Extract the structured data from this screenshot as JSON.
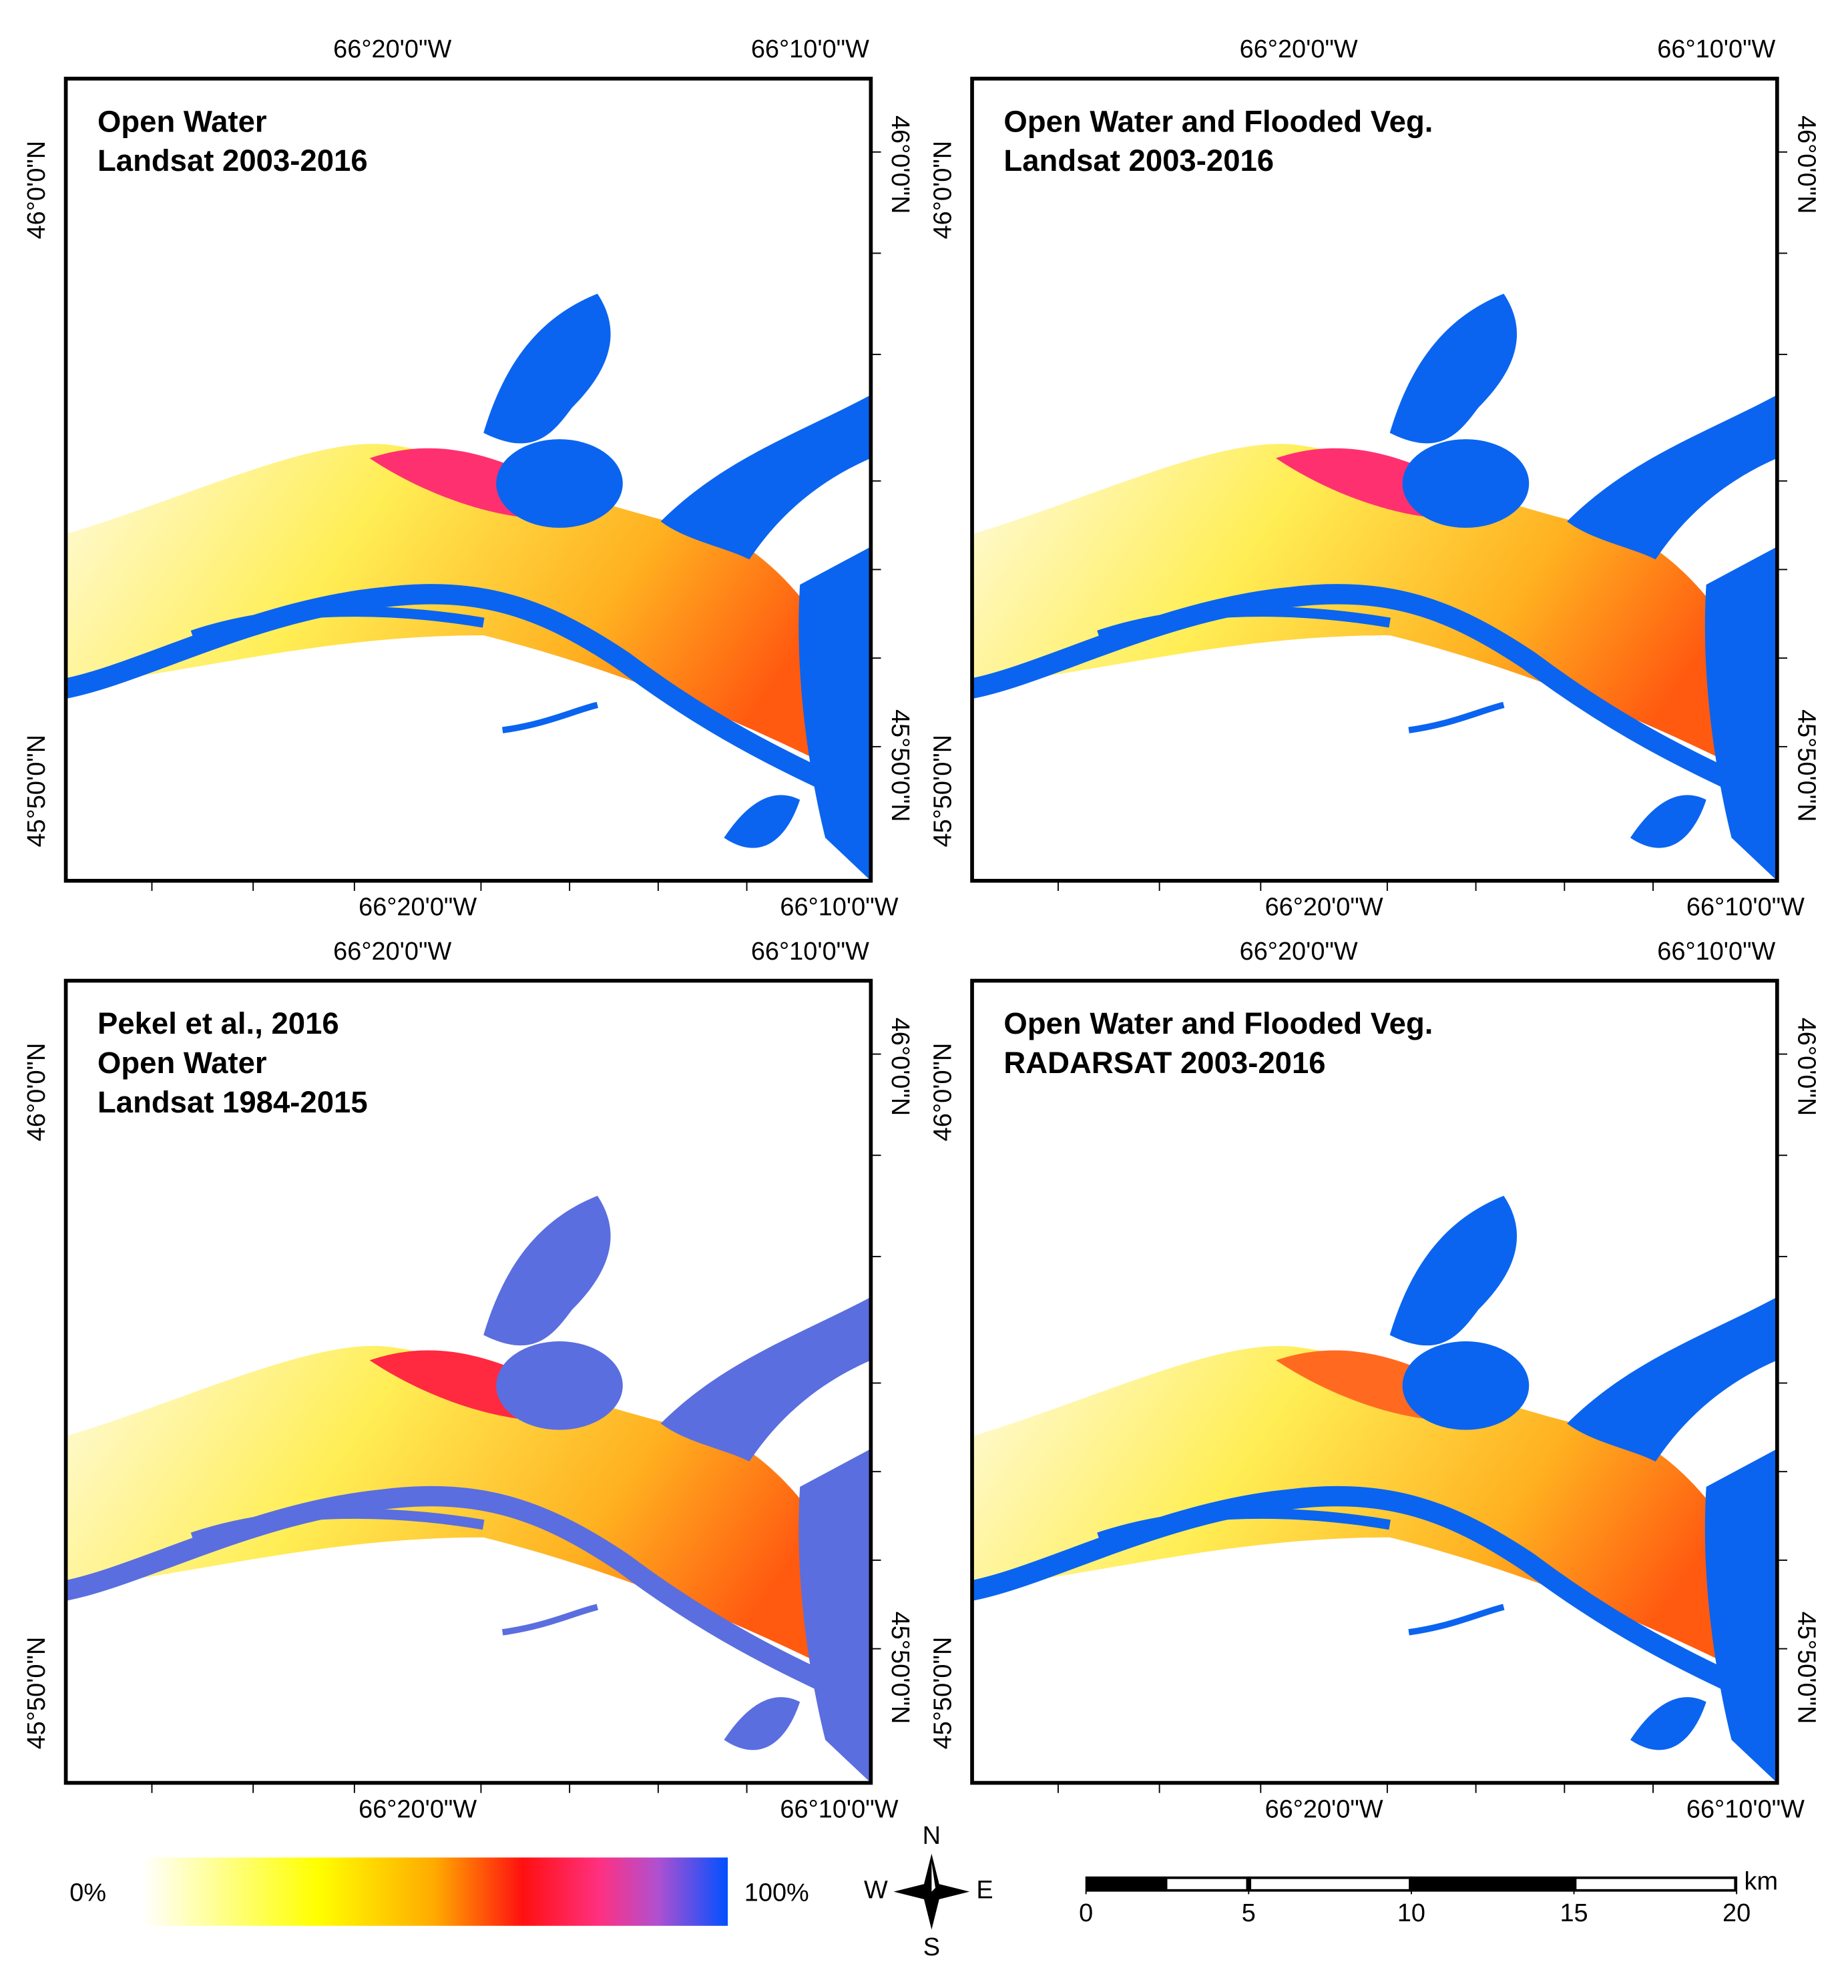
{
  "panels": [
    {
      "title_lines": [
        "Open Water",
        "Landsat 2003-2016"
      ]
    },
    {
      "title_lines": [
        "Open Water and Flooded Veg.",
        "Landsat 2003-2016"
      ]
    },
    {
      "title_lines": [
        "Pekel et al., 2016",
        "Open Water",
        "Landsat 1984-2015"
      ]
    },
    {
      "title_lines": [
        "Open Water and Flooded Veg.",
        "RADARSAT 2003-2016"
      ]
    }
  ],
  "coordinates": {
    "longitude": [
      "66°20'0\"W",
      "66°10'0\"W"
    ],
    "latitude": [
      "46°0'0\"N",
      "45°50'0\"N"
    ]
  },
  "legend": {
    "min_label": "0%",
    "max_label": "100%"
  },
  "compass": {
    "north": "N",
    "south": "S",
    "east": "E",
    "west": "W"
  },
  "scale_bar": {
    "ticks": [
      0,
      5,
      10,
      15,
      20
    ],
    "unit": "km"
  }
}
